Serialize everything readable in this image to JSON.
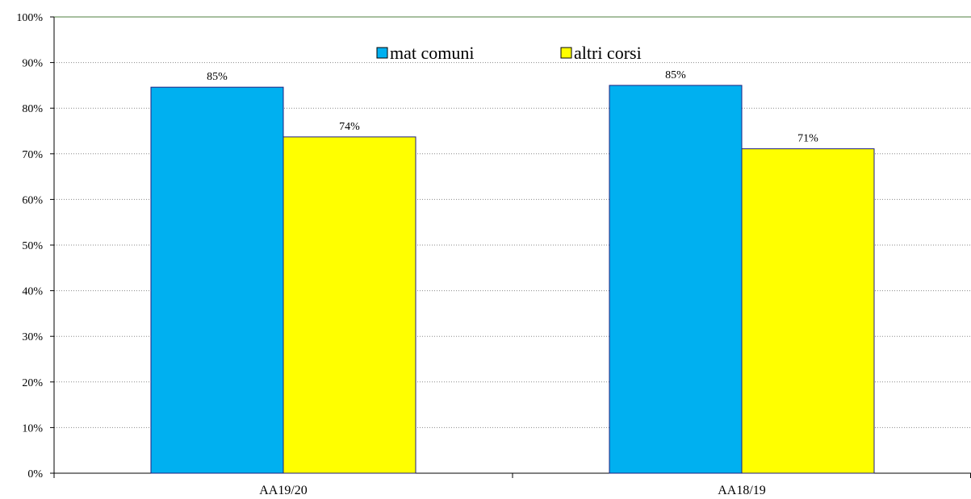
{
  "chart_data": {
    "type": "bar",
    "categories": [
      "AA19/20",
      "AA18/19"
    ],
    "series": [
      {
        "name": "mat comuni",
        "values": [
          85,
          85
        ],
        "display_values": [
          84.6,
          85.0
        ],
        "color": "#00B0F0"
      },
      {
        "name": "altri corsi",
        "values": [
          74,
          71
        ],
        "display_values": [
          73.7,
          71.1
        ],
        "color": "#FFFF00"
      }
    ],
    "data_labels": [
      [
        "85%",
        "85%"
      ],
      [
        "74%",
        "71%"
      ]
    ],
    "title": "",
    "xlabel": "",
    "ylabel": "",
    "ylim": [
      0,
      100
    ],
    "y_ticks": [
      0,
      10,
      20,
      30,
      40,
      50,
      60,
      70,
      80,
      90,
      100
    ],
    "y_tick_labels": [
      "0%",
      "10%",
      "20%",
      "30%",
      "40%",
      "50%",
      "60%",
      "70%",
      "80%",
      "90%",
      "100%"
    ],
    "grid": "horizontal dotted",
    "legend_position": "top-center",
    "frame_color": "#4F7F3F",
    "bar_outline_color": "#1F1F7F"
  }
}
